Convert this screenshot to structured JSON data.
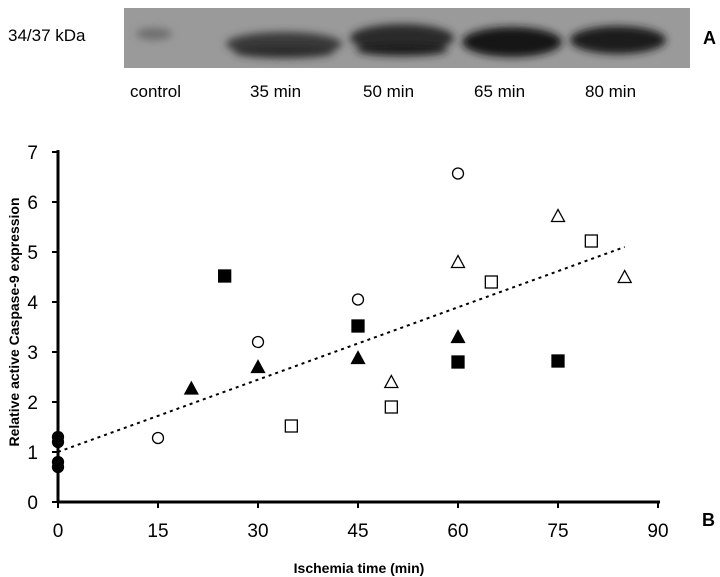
{
  "blot": {
    "band_label": "34/37 kDa",
    "lanes": [
      "control",
      "35 min",
      "50 min",
      "65 min",
      "80 min"
    ],
    "panel": "A"
  },
  "chart_data": {
    "type": "scatter",
    "panel": "B",
    "title": "",
    "xlabel": "Ischemia time (min)",
    "ylabel": "Relative active Caspase-9 expression",
    "xlim": [
      0,
      90
    ],
    "ylim": [
      0,
      7
    ],
    "xticks": [
      0,
      15,
      30,
      45,
      60,
      75,
      90
    ],
    "yticks": [
      0,
      1,
      2,
      3,
      4,
      5,
      6,
      7
    ],
    "grid": false,
    "series": [
      {
        "marker": "filled-circle",
        "points": [
          [
            0,
            1.3
          ],
          [
            0,
            1.2
          ],
          [
            0,
            0.8
          ],
          [
            0,
            0.7
          ]
        ]
      },
      {
        "marker": "open-circle",
        "points": [
          [
            15,
            1.28
          ],
          [
            30,
            3.2
          ],
          [
            45,
            4.05
          ],
          [
            60,
            6.57
          ]
        ]
      },
      {
        "marker": "filled-triangle",
        "points": [
          [
            20,
            2.27
          ],
          [
            30,
            2.7
          ],
          [
            45,
            2.88
          ],
          [
            60,
            3.3
          ]
        ]
      },
      {
        "marker": "open-triangle",
        "points": [
          [
            50,
            2.4
          ],
          [
            60,
            4.8
          ],
          [
            75,
            5.72
          ],
          [
            85,
            4.5
          ]
        ]
      },
      {
        "marker": "filled-square",
        "points": [
          [
            25,
            4.52
          ],
          [
            45,
            3.52
          ],
          [
            60,
            2.8
          ],
          [
            75,
            2.82
          ]
        ]
      },
      {
        "marker": "open-square",
        "points": [
          [
            35,
            1.52
          ],
          [
            50,
            1.9
          ],
          [
            65,
            4.4
          ],
          [
            80,
            5.22
          ]
        ]
      }
    ],
    "trendline": {
      "style": "dotted",
      "from": [
        0,
        1.0
      ],
      "to": [
        85,
        5.1
      ]
    }
  }
}
